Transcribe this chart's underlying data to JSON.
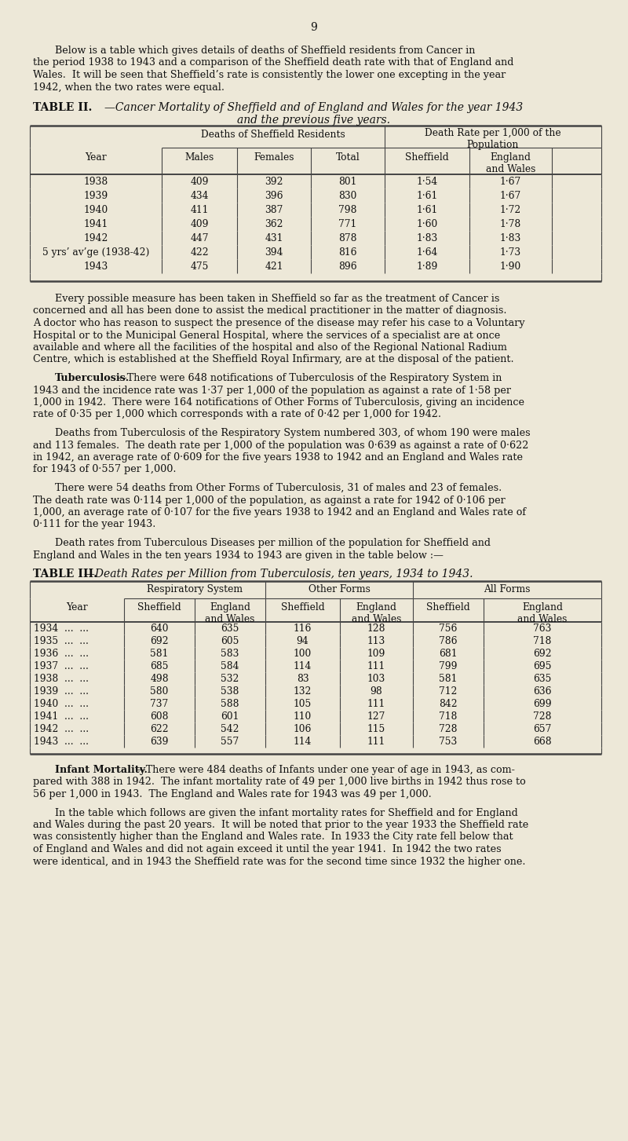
{
  "bg_color": "#ede8d8",
  "text_color": "#111111",
  "page_number": "9",
  "intro_para1_lines": [
    "Below is a table which gives details of deaths of Sheffield residents from Cancer in",
    "the period 1938 to 1943 and a comparison of the Sheffield death rate with that of England and",
    "Wales.  It will be seen that Sheffield’s rate is consistently the lower one excepting in the year",
    "1942, when the two rates were equal."
  ],
  "table2_title_bold": "TABLE II.",
  "table2_title_italic_line1": "—Cancer Mortality of Sheffield and of England and Wales for the year 1943",
  "table2_title_italic_line2": "and the previous five years.",
  "table2_rows": [
    [
      "1938",
      "409",
      "392",
      "801",
      "1·54",
      "1·67"
    ],
    [
      "1939",
      "434",
      "396",
      "830",
      "1·61",
      "1·67"
    ],
    [
      "1940",
      "411",
      "387",
      "798",
      "1·61",
      "1·72"
    ],
    [
      "1941",
      "409",
      "362",
      "771",
      "1·60",
      "1·78"
    ],
    [
      "1942",
      "447",
      "431",
      "878",
      "1·83",
      "1·83"
    ],
    [
      "5 yrs’ av’ge (1938-42)",
      "422",
      "394",
      "816",
      "1·64",
      "1·73"
    ],
    [
      "1943",
      "475",
      "421",
      "896",
      "1·89",
      "1·90"
    ]
  ],
  "para2_lines": [
    "Every possible measure has been taken in Sheffield so far as the treatment of Cancer is",
    "concerned and all has been done to assist the medical practitioner in the matter of diagnosis.",
    "A doctor who has reason to suspect the presence of the disease may refer his case to a Voluntary",
    "Hospital or to the Municipal General Hospital, where the services of a specialist are at once",
    "available and where all the facilities of the hospital and also of the Regional National Radium",
    "Centre, which is established at the Sheffield Royal Infirmary, are at the disposal of the patient."
  ],
  "para3_bold": "Tuberculosis.",
  "para3_rest_lines": [
    "—There were 648 notifications of Tuberculosis of the Respiratory System in",
    "1943 and the incidence rate was 1·37 per 1,000 of the population as against a rate of 1·58 per",
    "1,000 in 1942.  There were 164 notifications of Other Forms of Tuberculosis, giving an incidence",
    "rate of 0·35 per 1,000 which corresponds with a rate of 0·42 per 1,000 for 1942."
  ],
  "para4_lines": [
    "Deaths from Tuberculosis of the Respiratory System numbered 303, of whom 190 were males",
    "and 113 females.  The death rate per 1,000 of the population was 0·639 as against a rate of 0·622",
    "in 1942, an average rate of 0·609 for the five years 1938 to 1942 and an England and Wales rate",
    "for 1943 of 0·557 per 1,000."
  ],
  "para5_lines": [
    "There were 54 deaths from Other Forms of Tuberculosis, 31 of males and 23 of females.",
    "The death rate was 0·114 per 1,000 of the population, as against a rate for 1942 of 0·106 per",
    "1,000, an average rate of 0·107 for the five years 1938 to 1942 and an England and Wales rate of",
    "0·111 for the year 1943."
  ],
  "para6_lines": [
    "Death rates from Tuberculous Diseases per million of the population for Sheffield and",
    "England and Wales in the ten years 1934 to 1943 are given in the table below :—"
  ],
  "table3_title_bold": "TABLE III.",
  "table3_title_italic": "—Death Rates per Million from Tuberculosis, ten years, 1934 to 1943.",
  "table3_group_headers": [
    "Respiratory System",
    "Other Forms",
    "All Forms"
  ],
  "table3_rows": [
    [
      "1934",
      "640",
      "635",
      "116",
      "128",
      "756",
      "763"
    ],
    [
      "1935",
      "692",
      "605",
      "94",
      "113",
      "786",
      "718"
    ],
    [
      "1936",
      "581",
      "583",
      "100",
      "109",
      "681",
      "692"
    ],
    [
      "1937",
      "685",
      "584",
      "114",
      "111",
      "799",
      "695"
    ],
    [
      "1938",
      "498",
      "532",
      "83",
      "103",
      "581",
      "635"
    ],
    [
      "1939",
      "580",
      "538",
      "132",
      "98",
      "712",
      "636"
    ],
    [
      "1940",
      "737",
      "588",
      "105",
      "111",
      "842",
      "699"
    ],
    [
      "1941",
      "608",
      "601",
      "110",
      "127",
      "718",
      "728"
    ],
    [
      "1942",
      "622",
      "542",
      "106",
      "115",
      "728",
      "657"
    ],
    [
      "1943",
      "639",
      "557",
      "114",
      "111",
      "753",
      "668"
    ]
  ],
  "para7_bold": "Infant Mortality.",
  "para7_rest_lines": [
    "—There were 484 deaths of Infants under one year of age in 1943, as com-",
    "pared with 388 in 1942.  The infant mortality rate of 49 per 1,000 live births in 1942 thus rose to",
    "56 per 1,000 in 1943.  The England and Wales rate for 1943 was 49 per 1,000."
  ],
  "para8_lines": [
    "In the table which follows are given the infant mortality rates for Sheffield and for England",
    "and Wales during the past 20 years.  It will be noted that prior to the year 1933 the Sheffield rate",
    "was consistently higher than the England and Wales rate.  In 1933 the City rate fell below that",
    "of England and Wales and did not again exceed it until the year 1941.  In 1942 the two rates",
    "were identical, and in 1943 the Sheffield rate was for the second time since 1932 the higher one."
  ]
}
